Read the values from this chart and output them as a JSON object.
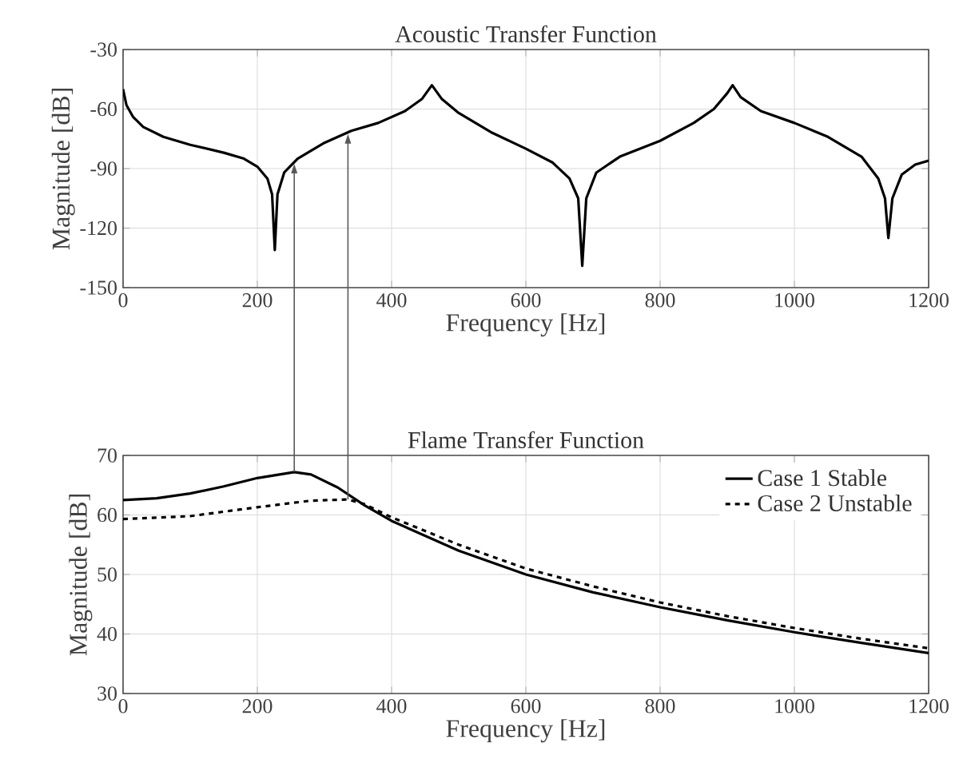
{
  "chart_data": [
    {
      "type": "line",
      "title": "Acoustic Transfer Function",
      "xlabel": "Frequency [Hz]",
      "ylabel": "Magnitude [dB]",
      "xlim": [
        0,
        1200
      ],
      "ylim": [
        -150,
        -30
      ],
      "xticks": [
        0,
        200,
        400,
        600,
        800,
        1000,
        1200
      ],
      "yticks": [
        -150,
        -120,
        -90,
        -60,
        -30
      ],
      "grid": true,
      "legend": false,
      "series": [
        {
          "color": "#000000",
          "line_style": "solid",
          "x": [
            0,
            5,
            15,
            30,
            60,
            100,
            150,
            180,
            200,
            215,
            222,
            226,
            230,
            240,
            260,
            300,
            340,
            380,
            420,
            445,
            460,
            475,
            500,
            550,
            600,
            640,
            665,
            678,
            684,
            690,
            705,
            740,
            800,
            850,
            880,
            900,
            908,
            920,
            950,
            1000,
            1050,
            1100,
            1125,
            1135,
            1140,
            1146,
            1160,
            1180,
            1200
          ],
          "values": [
            -50,
            -58,
            -64,
            -69,
            -74,
            -78,
            -82,
            -85,
            -89,
            -95,
            -103,
            -131,
            -103,
            -92,
            -85,
            -77,
            -71,
            -67,
            -61,
            -55,
            -48,
            -55,
            -62,
            -72,
            -80,
            -87,
            -95,
            -105,
            -139,
            -105,
            -92,
            -84,
            -76,
            -67,
            -60,
            -52,
            -48,
            -54,
            -61,
            -67,
            -74,
            -84,
            -95,
            -105,
            -125,
            -105,
            -93,
            -88,
            -86
          ]
        }
      ]
    },
    {
      "type": "line",
      "title": "Flame Transfer Function",
      "xlabel": "Frequency [Hz]",
      "ylabel": "Magnitude [dB]",
      "xlim": [
        0,
        1200
      ],
      "ylim": [
        30,
        70
      ],
      "xticks": [
        0,
        200,
        400,
        600,
        800,
        1000,
        1200
      ],
      "yticks": [
        30,
        40,
        50,
        60,
        70
      ],
      "grid": true,
      "legend": "top right",
      "series": [
        {
          "name": "Case 1 Stable",
          "color": "#000000",
          "line_style": "solid",
          "x": [
            0,
            50,
            100,
            150,
            200,
            255,
            280,
            320,
            360,
            400,
            500,
            600,
            700,
            800,
            900,
            1000,
            1100,
            1200
          ],
          "values": [
            62.5,
            62.8,
            63.6,
            64.8,
            66.2,
            67.2,
            66.8,
            64.6,
            61.6,
            59,
            54,
            50,
            47,
            44.5,
            42.3,
            40.3,
            38.5,
            36.8
          ]
        },
        {
          "name": "Case 2 Unstable",
          "color": "#000000",
          "line_style": "dashed",
          "x": [
            0,
            100,
            200,
            280,
            335,
            360,
            400,
            500,
            600,
            700,
            800,
            900,
            1000,
            1100,
            1200
          ],
          "values": [
            59.3,
            59.8,
            61.3,
            62.4,
            62.6,
            61.8,
            59.6,
            55,
            51,
            48,
            45.3,
            43,
            41,
            39.2,
            37.6
          ]
        }
      ]
    }
  ]
}
